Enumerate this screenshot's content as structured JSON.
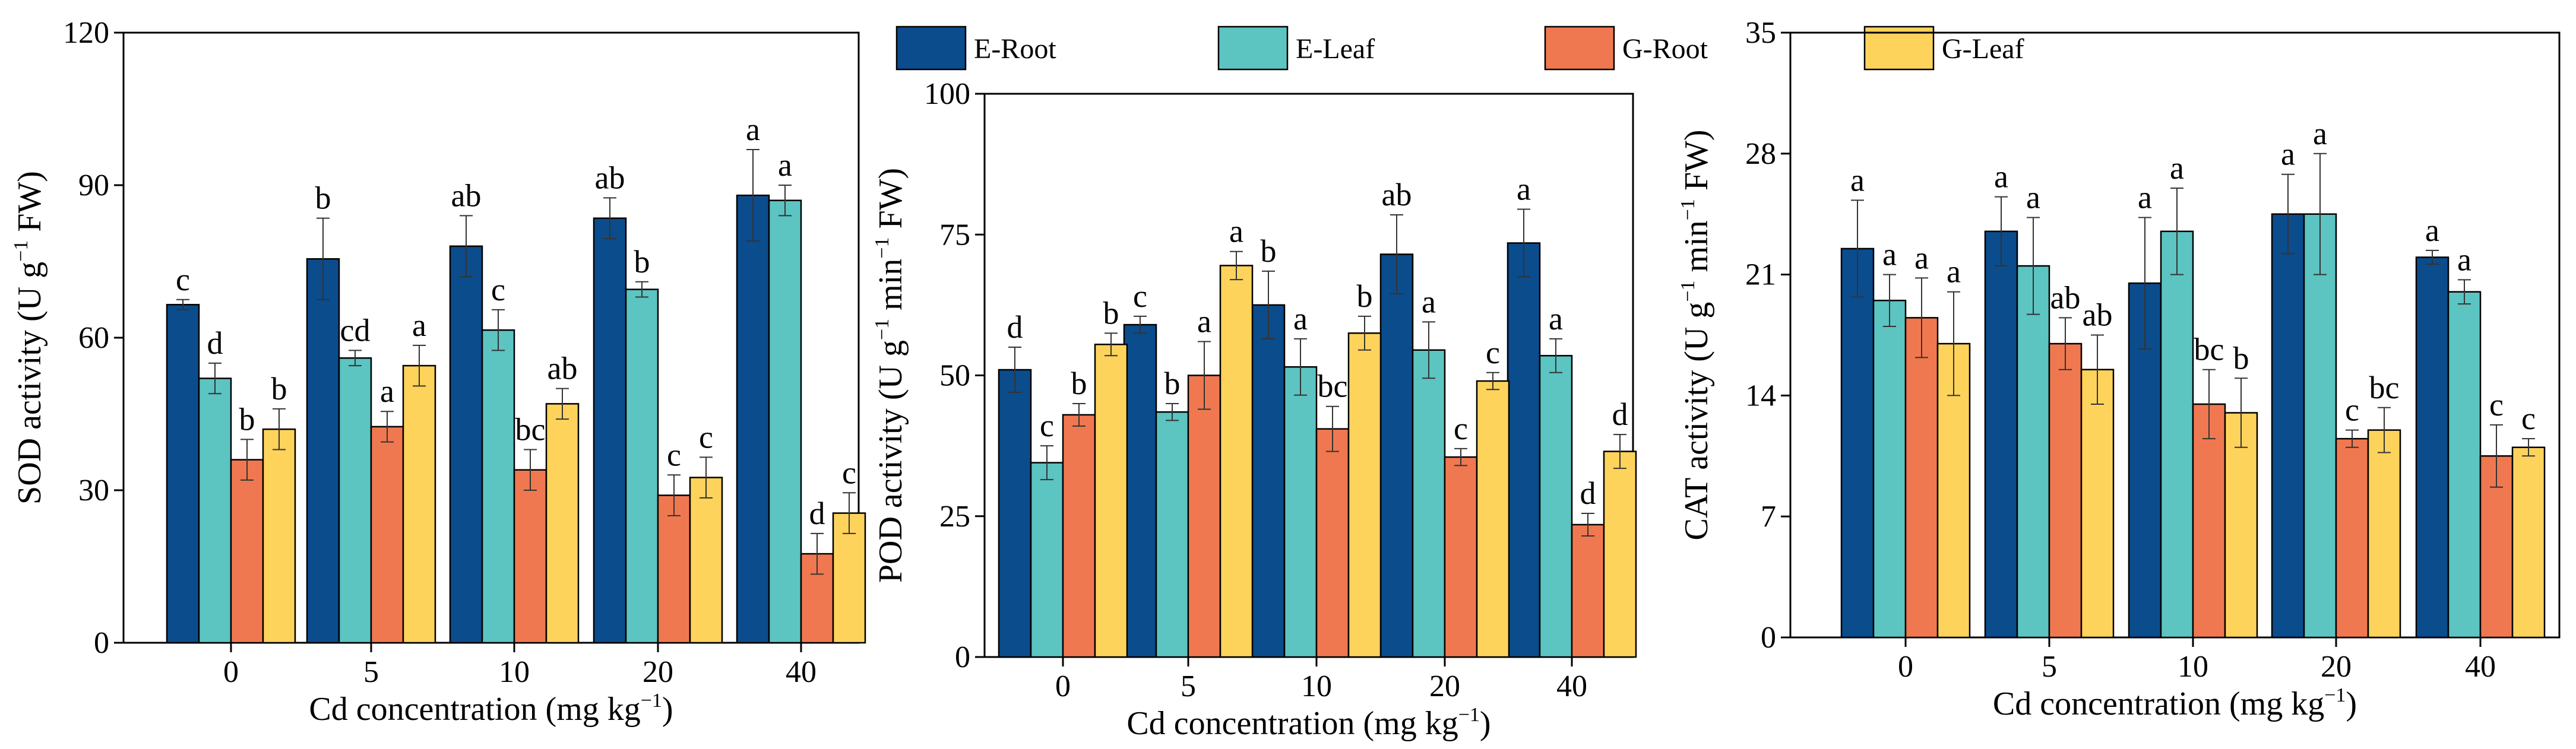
{
  "legend": [
    {
      "name": "E-Root",
      "color": "#0b4c8c"
    },
    {
      "name": "E-Leaf",
      "color": "#5cc4c1"
    },
    {
      "name": "G-Root",
      "color": "#f07850"
    },
    {
      "name": "G-Leaf",
      "color": "#fdd35c"
    }
  ],
  "chart_data": [
    {
      "type": "bar",
      "panel": "SOD",
      "categories": [
        "0",
        "5",
        "10",
        "20",
        "40"
      ],
      "xlabel": "Cd concentration (mg kg−1)",
      "xlabel_main": "Cd concentration (mg kg",
      "xlabel_sup": "−1",
      "xlabel_end": ")",
      "ylabel": "SOD activity (U g−1 FW)",
      "ylabel_main": "SOD activity (U g",
      "ylabel_sup": "−1",
      "ylabel_mid": "",
      "ylabel_sup2": "",
      "ylabel_end": " FW)",
      "ylim": [
        0,
        120
      ],
      "yticks": [
        0,
        30,
        60,
        90,
        120
      ],
      "yticklabels": [
        "0",
        "30",
        "60",
        "90",
        "120"
      ],
      "series": [
        {
          "name": "E-Root",
          "values": [
            66.5,
            75.5,
            78,
            83.5,
            88
          ],
          "errors": [
            1,
            8,
            6,
            4,
            9
          ],
          "labels": [
            "c",
            "b",
            "ab",
            "ab",
            "a"
          ]
        },
        {
          "name": "E-Leaf",
          "values": [
            52,
            56,
            61.5,
            69.5,
            87
          ],
          "errors": [
            3,
            1.5,
            4,
            1.5,
            3
          ],
          "labels": [
            "d",
            "cd",
            "c",
            "b",
            "a"
          ]
        },
        {
          "name": "G-Root",
          "values": [
            36,
            42.5,
            34,
            29,
            17.5
          ],
          "errors": [
            4,
            3,
            4,
            4,
            4
          ],
          "labels": [
            "b",
            "a",
            "bc",
            "c",
            "d"
          ]
        },
        {
          "name": "G-Leaf",
          "values": [
            42,
            54.5,
            47,
            32.5,
            25.5
          ],
          "errors": [
            4,
            4,
            3,
            4,
            4
          ],
          "labels": [
            "b",
            "a",
            "ab",
            "c",
            "c"
          ]
        }
      ]
    },
    {
      "type": "bar",
      "panel": "POD",
      "categories": [
        "0",
        "5",
        "10",
        "20",
        "40"
      ],
      "xlabel": "Cd concentration (mg kg−1)",
      "xlabel_main": "Cd concentration (mg kg",
      "xlabel_sup": "−1",
      "xlabel_end": ")",
      "ylabel": "POD activity (U g−1 min−1 FW)",
      "ylabel_main": "POD activity (U g",
      "ylabel_sup": "−1",
      "ylabel_mid": " min",
      "ylabel_sup2": "−1",
      "ylabel_end": " FW)",
      "ylim": [
        0,
        100
      ],
      "yticks": [
        0,
        25,
        50,
        75,
        100
      ],
      "yticklabels": [
        "0",
        "25",
        "50",
        "75",
        "100"
      ],
      "series": [
        {
          "name": "E-Root",
          "values": [
            51,
            59,
            62.5,
            71.5,
            73.5
          ],
          "errors": [
            4,
            1.5,
            6,
            7,
            6
          ],
          "labels": [
            "d",
            "c",
            "b",
            "ab",
            "a"
          ]
        },
        {
          "name": "E-Leaf",
          "values": [
            34.5,
            43.5,
            51.5,
            54.5,
            53.5
          ],
          "errors": [
            3,
            1.5,
            5,
            5,
            3
          ],
          "labels": [
            "c",
            "b",
            "a",
            "a",
            "a"
          ]
        },
        {
          "name": "G-Root",
          "values": [
            43,
            50,
            40.5,
            35.5,
            23.5
          ],
          "errors": [
            2,
            6,
            4,
            1.5,
            2
          ],
          "labels": [
            "b",
            "a",
            "bc",
            "c",
            "d"
          ]
        },
        {
          "name": "G-Leaf",
          "values": [
            55.5,
            69.5,
            57.5,
            49,
            36.5
          ],
          "errors": [
            2,
            2.5,
            3,
            1.5,
            3
          ],
          "labels": [
            "b",
            "a",
            "b",
            "c",
            "d"
          ]
        }
      ]
    },
    {
      "type": "bar",
      "panel": "CAT",
      "categories": [
        "0",
        "5",
        "10",
        "20",
        "40"
      ],
      "xlabel": "Cd concentration (mg kg−1)",
      "xlabel_main": "Cd concentration (mg kg",
      "xlabel_sup": "−1",
      "xlabel_end": ")",
      "ylabel": "CAT activity (U g−1 min−1 FW)",
      "ylabel_main": "CAT activity (U g",
      "ylabel_sup": "−1",
      "ylabel_mid": " min",
      "ylabel_sup2": "−1",
      "ylabel_end": " FW)",
      "ylim": [
        0,
        35
      ],
      "yticks": [
        0,
        7,
        14,
        21,
        28,
        35
      ],
      "yticklabels": [
        "0",
        "7",
        "14",
        "21",
        "28",
        "35"
      ],
      "series": [
        {
          "name": "E-Root",
          "values": [
            22.5,
            23.5,
            20.5,
            24.5,
            22
          ],
          "errors": [
            2.8,
            2,
            3.8,
            2.3,
            0.4
          ],
          "labels": [
            "a",
            "a",
            "a",
            "a",
            "a"
          ]
        },
        {
          "name": "E-Leaf",
          "values": [
            19.5,
            21.5,
            23.5,
            24.5,
            20
          ],
          "errors": [
            1.5,
            2.8,
            2.5,
            3.5,
            0.7
          ],
          "labels": [
            "a",
            "a",
            "a",
            "a",
            "a"
          ]
        },
        {
          "name": "G-Root",
          "values": [
            18.5,
            17,
            13.5,
            11.5,
            10.5
          ],
          "errors": [
            2.3,
            1.5,
            2,
            0.5,
            1.8
          ],
          "labels": [
            "a",
            "ab",
            "bc",
            "c",
            "c"
          ]
        },
        {
          "name": "G-Leaf",
          "values": [
            17,
            15.5,
            13,
            12,
            11
          ],
          "errors": [
            3,
            2,
            2,
            1.3,
            0.5
          ],
          "labels": [
            "a",
            "ab",
            "b",
            "bc",
            "c"
          ]
        }
      ]
    }
  ]
}
